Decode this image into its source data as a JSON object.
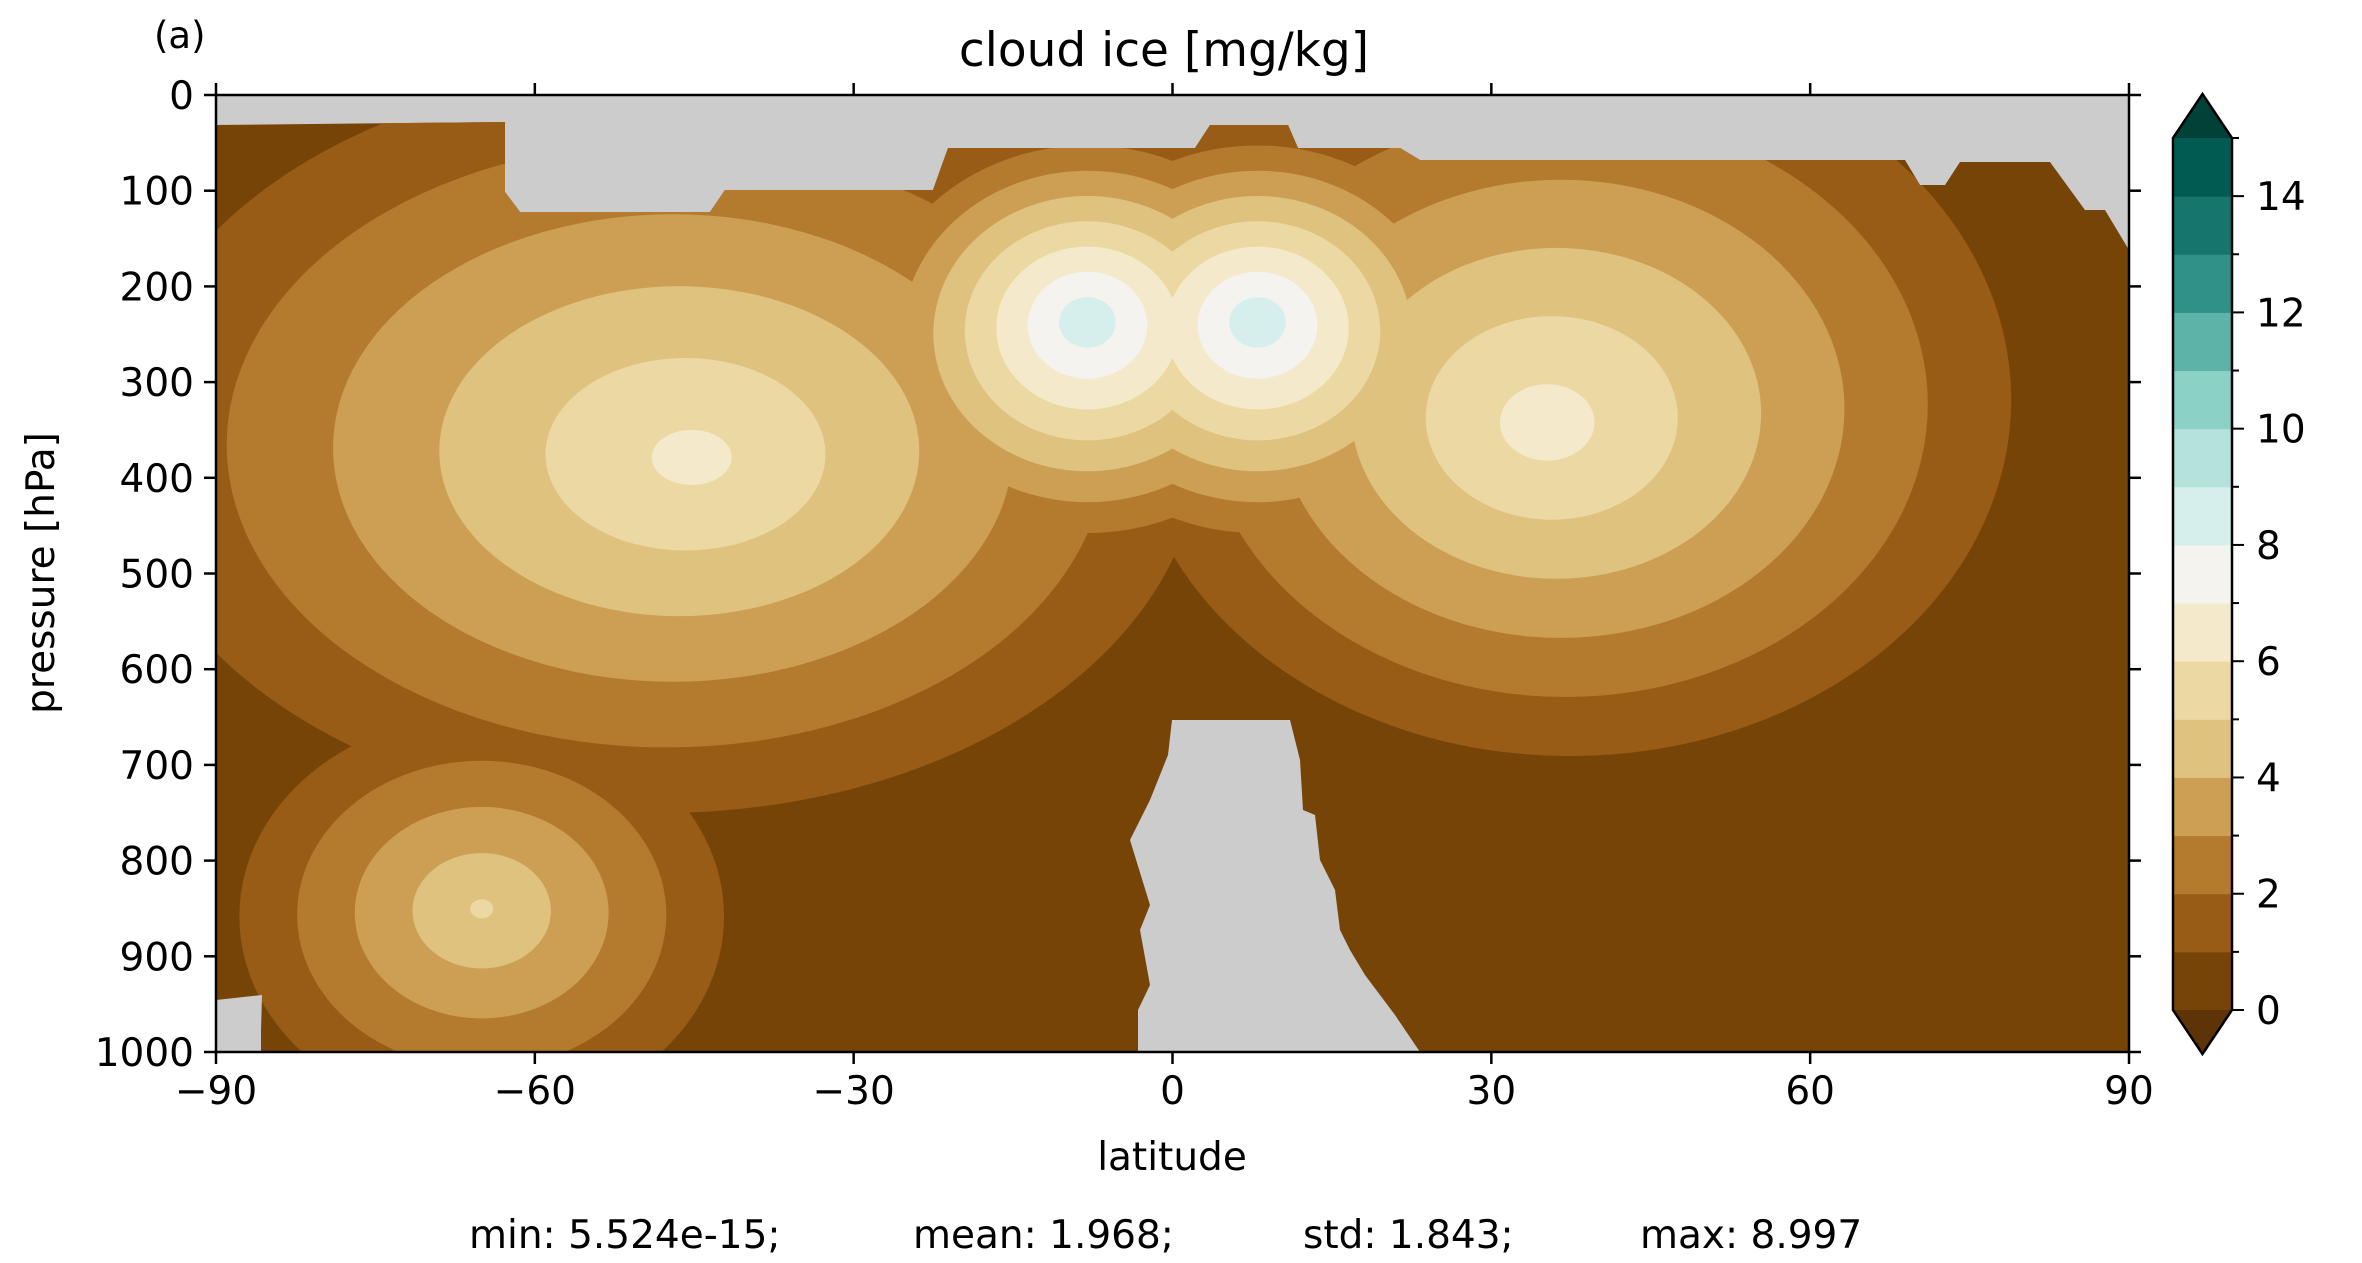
{
  "panel_label": "(a)",
  "stats": {
    "min": "min: 5.524e-15;",
    "mean": "mean: 1.968;",
    "std": "std: 1.843;",
    "max": "max: 8.997"
  },
  "chart_data": {
    "type": "contourf",
    "title": "cloud ice [mg/kg]",
    "xlabel": "latitude",
    "ylabel": "pressure [hPa]",
    "xlim": [
      -90,
      90
    ],
    "ylim": [
      1000,
      0
    ],
    "y_inverted": true,
    "x_ticks": [
      -90,
      -60,
      -30,
      0,
      30,
      60,
      90
    ],
    "x_tick_labels": [
      "−90",
      "−60",
      "−30",
      "0",
      "30",
      "60",
      "90"
    ],
    "y_ticks": [
      0,
      100,
      200,
      300,
      400,
      500,
      600,
      700,
      800,
      900,
      1000
    ],
    "y_tick_labels": [
      "0",
      "100",
      "200",
      "300",
      "400",
      "500",
      "600",
      "700",
      "800",
      "900",
      "1000"
    ],
    "colorbar": {
      "levels": [
        0,
        1,
        2,
        3,
        4,
        5,
        6,
        7,
        8,
        9,
        10,
        11,
        12,
        13,
        14,
        15
      ],
      "colors": [
        "#774408",
        "#985c16",
        "#b47a2e",
        "#cc9f55",
        "#dfc27e",
        "#ecd8a2",
        "#f4eacb",
        "#f4f3ef",
        "#d7efec",
        "#b5e3dc",
        "#8bd1c5",
        "#5db3a7",
        "#2f9188",
        "#16766e",
        "#025b52"
      ],
      "under_color": "#5c3408",
      "over_color": "#014138",
      "extend": "both",
      "tick_values": [
        0,
        2,
        4,
        6,
        8,
        10,
        12,
        14
      ],
      "tick_labels": [
        "0",
        "2",
        "4",
        "6",
        "8",
        "10",
        "12",
        "14"
      ]
    },
    "missing_color": "#cccccc",
    "grid": false,
    "contours": [
      {
        "name": "peak-nh-upper",
        "lat": 35,
        "p": 345,
        "value": 6.6
      },
      {
        "name": "peak-sh-upper",
        "lat": -45,
        "p": 380,
        "value": 6.4
      },
      {
        "name": "peak-tropics-south",
        "lat": -8,
        "p": 235,
        "value": 8.9
      },
      {
        "name": "peak-tropics-north",
        "lat": 8,
        "p": 235,
        "value": 8.9
      },
      {
        "name": "peak-sh-lower",
        "lat": -65,
        "p": 850,
        "value": 5.2
      }
    ]
  }
}
